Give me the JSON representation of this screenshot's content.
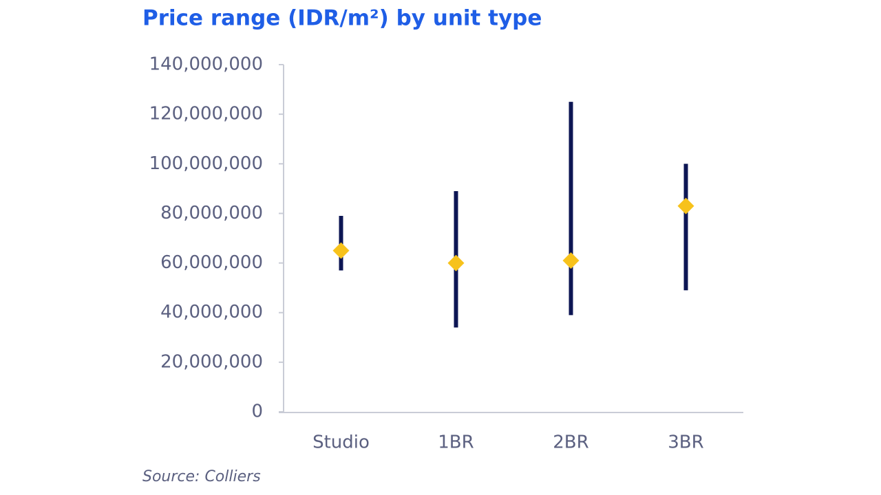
{
  "chart_data": {
    "type": "range",
    "title": "Price range (IDR/m²) by unit type",
    "source": "Source: Colliers",
    "categories": [
      "Studio",
      "1BR",
      "2BR",
      "3BR"
    ],
    "low": [
      57000000,
      34000000,
      39000000,
      49000000
    ],
    "high": [
      79000000,
      89000000,
      125000000,
      100000000
    ],
    "values": [
      65000000,
      60000000,
      61000000,
      83000000
    ],
    "range_color": "#0d1654",
    "color": "#f7c21b",
    "ylim": [
      0,
      140000000
    ],
    "yticks": [
      0,
      {
        "value": 20000000,
        "label": "20,000,000"
      },
      {
        "value": 40000000,
        "label": "40,000,000"
      },
      {
        "value": 60000000,
        "label": "60,000,000"
      },
      {
        "value": 80000000,
        "label": "80,000,000"
      },
      {
        "value": 100000000,
        "label": "100,000,000"
      },
      {
        "value": 120000000,
        "label": "120,000,000"
      },
      {
        "value": 140000000,
        "label": "140,000,000"
      }
    ],
    "grid": false
  }
}
